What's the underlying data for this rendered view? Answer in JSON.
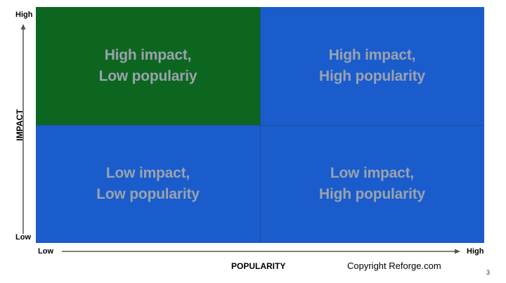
{
  "matrix": {
    "top_left": {
      "line1": "High impact,",
      "line2": "Low populariy"
    },
    "top_right": {
      "line1": "High impact,",
      "line2": "High popularity"
    },
    "bottom_left": {
      "line1": "Low impact,",
      "line2": "Low popularity"
    },
    "bottom_right": {
      "line1": "Low impact,",
      "line2": "High popularity"
    }
  },
  "y_axis": {
    "title": "IMPACT",
    "high": "High",
    "low": "Low"
  },
  "x_axis": {
    "title": "POPULARITY",
    "low": "Low",
    "high": "High"
  },
  "footer": {
    "copyright": "Copyright Reforge.com",
    "page_number": "3"
  },
  "colors": {
    "highlight_quadrant": "#0d6620",
    "quadrant": "#1a5ccc",
    "quadrant_text": "#9aa3ad",
    "axis": "#555555"
  }
}
